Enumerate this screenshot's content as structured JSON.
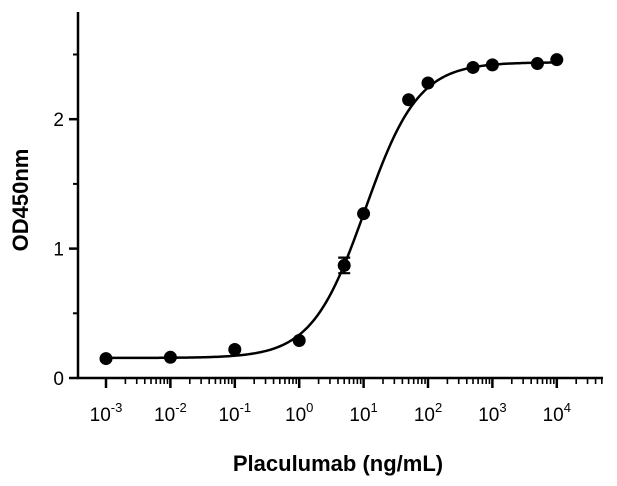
{
  "chart_data": {
    "type": "scatter",
    "xlabel": "Placulumab (ng/mL)",
    "ylabel": "OD450nm",
    "x_scale": "log10",
    "xlim": [
      0.001,
      10000
    ],
    "ylim": [
      0,
      2.8
    ],
    "x_ticks": [
      {
        "base": "10",
        "exp": "-3"
      },
      {
        "base": "10",
        "exp": "-2"
      },
      {
        "base": "10",
        "exp": "-1"
      },
      {
        "base": "10",
        "exp": "0"
      },
      {
        "base": "10",
        "exp": "1"
      },
      {
        "base": "10",
        "exp": "2"
      },
      {
        "base": "10",
        "exp": "3"
      },
      {
        "base": "10",
        "exp": "4"
      }
    ],
    "y_ticks": [
      "0",
      "1",
      "2"
    ],
    "grid": false,
    "series": [
      {
        "points": [
          {
            "x": 0.001,
            "y": 0.15
          },
          {
            "x": 0.01,
            "y": 0.16
          },
          {
            "x": 0.1,
            "y": 0.22
          },
          {
            "x": 1,
            "y": 0.29
          },
          {
            "x": 5,
            "y": 0.87,
            "err": 0.06
          },
          {
            "x": 10,
            "y": 1.27
          },
          {
            "x": 50,
            "y": 2.15
          },
          {
            "x": 100,
            "y": 2.28
          },
          {
            "x": 500,
            "y": 2.4
          },
          {
            "x": 1000,
            "y": 2.42
          },
          {
            "x": 5000,
            "y": 2.43
          },
          {
            "x": 10000,
            "y": 2.46
          }
        ],
        "fit": {
          "model": "4PL",
          "bottom": 0.155,
          "top": 2.44,
          "ec50": 10.5,
          "hill": 1.05
        },
        "color": "#000000"
      }
    ]
  }
}
